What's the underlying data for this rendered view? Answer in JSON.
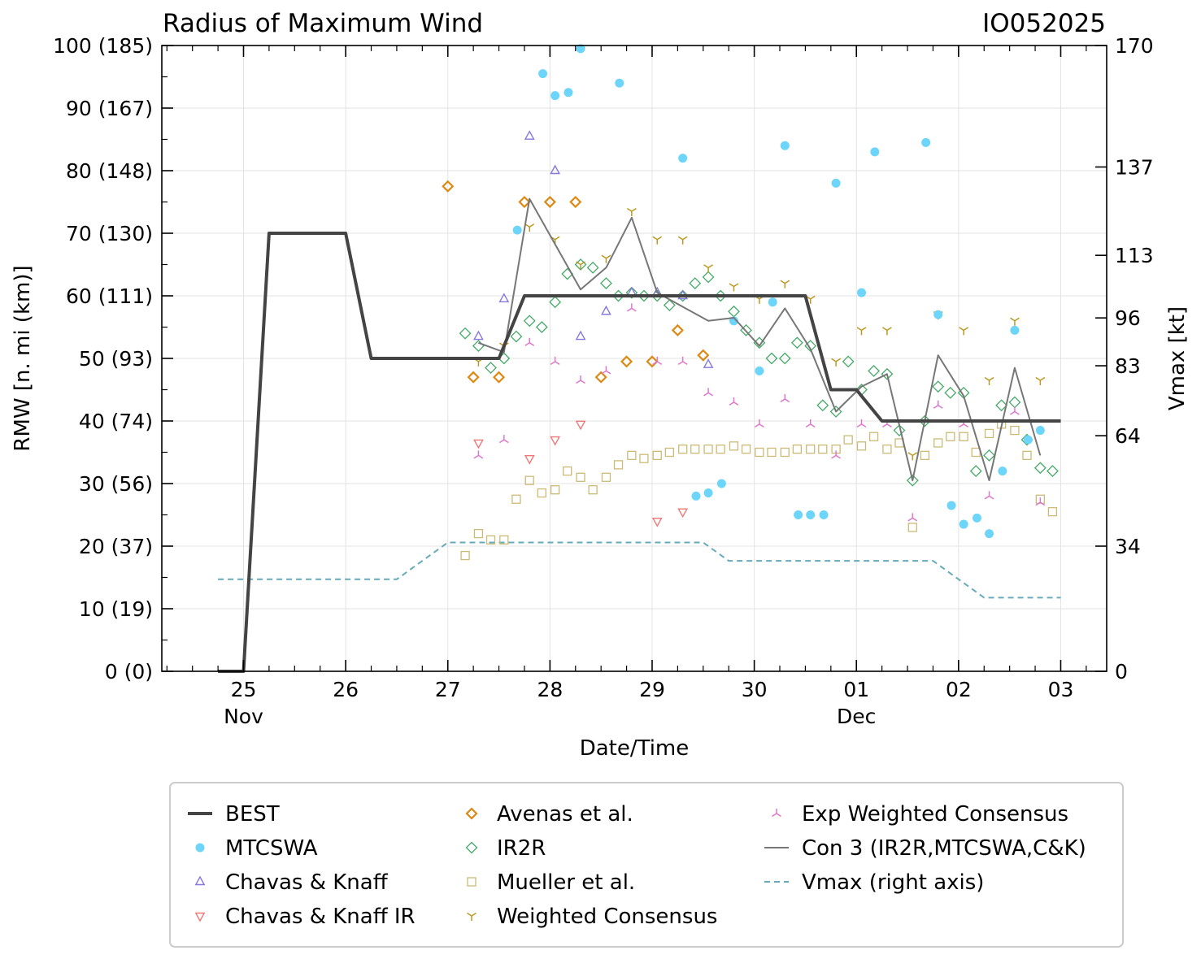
{
  "chart_data": {
    "type": "line+scatter",
    "title": "Radius of Maximum Wind",
    "storm_id": "IO052025",
    "xlabel": "Date/Time",
    "ylabel": "RMW [n. mi (km)]",
    "y2label": "Vmax [kt]",
    "ylim": [
      0,
      100
    ],
    "y2lim": [
      0,
      170
    ],
    "xlim_days": [
      -0.8,
      8.45
    ],
    "x_units": "days since 25 Nov 00Z",
    "y_ticks": [
      {
        "v": 0,
        "label": "0 (0)"
      },
      {
        "v": 10,
        "label": "10 (19)"
      },
      {
        "v": 20,
        "label": "20 (37)"
      },
      {
        "v": 30,
        "label": "30 (56)"
      },
      {
        "v": 40,
        "label": "40 (74)"
      },
      {
        "v": 50,
        "label": "50 (93)"
      },
      {
        "v": 60,
        "label": "60 (111)"
      },
      {
        "v": 70,
        "label": "70 (130)"
      },
      {
        "v": 80,
        "label": "80 (148)"
      },
      {
        "v": 90,
        "label": "90 (167)"
      },
      {
        "v": 100,
        "label": "100 (185)"
      }
    ],
    "y2_ticks": [
      {
        "v": 0,
        "label": "0"
      },
      {
        "v": 34,
        "label": "34"
      },
      {
        "v": 64,
        "label": "64"
      },
      {
        "v": 83,
        "label": "83"
      },
      {
        "v": 96,
        "label": "96"
      },
      {
        "v": 113,
        "label": "113"
      },
      {
        "v": 137,
        "label": "137"
      },
      {
        "v": 170,
        "label": "170"
      }
    ],
    "x_ticks": [
      {
        "v": 0,
        "label": "25",
        "sub": "Nov"
      },
      {
        "v": 1,
        "label": "26",
        "sub": ""
      },
      {
        "v": 2,
        "label": "27",
        "sub": ""
      },
      {
        "v": 3,
        "label": "28",
        "sub": ""
      },
      {
        "v": 4,
        "label": "29",
        "sub": ""
      },
      {
        "v": 5,
        "label": "30",
        "sub": ""
      },
      {
        "v": 6,
        "label": "01",
        "sub": "Dec"
      },
      {
        "v": 7,
        "label": "02",
        "sub": ""
      },
      {
        "v": 8,
        "label": "03",
        "sub": ""
      }
    ],
    "series": [
      {
        "key": "best",
        "name": "BEST",
        "kind": "line",
        "color": "#444444",
        "x": [
          -0.25,
          0,
          0.25,
          1,
          1.25,
          2.5,
          2.75,
          5.5,
          5.75,
          6,
          6.25,
          8
        ],
        "y": [
          0,
          0,
          70,
          70,
          50,
          50,
          60,
          60,
          45,
          45,
          40,
          40
        ]
      },
      {
        "key": "mtcswa",
        "name": "MTCSWA",
        "kind": "circle",
        "color": "#6dd5fa",
        "x": [
          2.68,
          2.93,
          3.05,
          3.18,
          3.3,
          3.68,
          4.3,
          4.43,
          4.55,
          4.68,
          4.8,
          5.05,
          5.18,
          5.3,
          5.43,
          5.55,
          5.68,
          5.8,
          6.05,
          6.18,
          6.68,
          6.8,
          6.93,
          7.05,
          7.18,
          7.3,
          7.43,
          7.55,
          7.68,
          7.8
        ],
        "y": [
          70.5,
          95.5,
          92,
          92.5,
          99.5,
          94,
          82,
          28,
          28.5,
          30,
          56,
          48,
          59,
          84,
          25,
          25,
          25,
          78,
          60.5,
          83,
          84.5,
          57,
          26.5,
          23.5,
          24.5,
          22,
          32,
          54.5,
          37,
          38.5
        ]
      },
      {
        "key": "ck",
        "name": "Chavas & Knaff",
        "kind": "tri-up",
        "color": "#8877dd",
        "x": [
          2.3,
          2.55,
          2.8,
          3.05,
          3.3,
          3.55,
          3.8,
          4.05,
          4.3,
          4.55
        ],
        "y": [
          53.5,
          59.5,
          85.5,
          80,
          53.5,
          57.5,
          60.5,
          60.5,
          60,
          49
        ]
      },
      {
        "key": "ckir",
        "name": "Chavas & Knaff IR",
        "kind": "tri-down",
        "color": "#ee7777",
        "x": [
          2.3,
          2.8,
          3.05,
          3.3,
          4.05,
          4.3
        ],
        "y": [
          36.5,
          34,
          37,
          39.5,
          24,
          25.5
        ]
      },
      {
        "key": "avenas",
        "name": "Avenas et al.",
        "kind": "diamond",
        "color": "#dd8811",
        "x": [
          2.0,
          2.25,
          2.5,
          2.75,
          3.0,
          3.25,
          3.5,
          3.75,
          4.0,
          4.25,
          4.5
        ],
        "y": [
          77.5,
          47,
          47,
          75,
          75,
          75,
          47,
          49.5,
          49.5,
          54.5,
          50.5
        ]
      },
      {
        "key": "ir2r",
        "name": "IR2R",
        "kind": "diamond-open",
        "color": "#44aa66",
        "x": [
          2.17,
          2.3,
          2.42,
          2.55,
          2.67,
          2.8,
          2.92,
          3.05,
          3.17,
          3.3,
          3.42,
          3.55,
          3.67,
          3.8,
          3.92,
          4.05,
          4.17,
          4.3,
          4.42,
          4.55,
          4.67,
          4.8,
          4.92,
          5.05,
          5.17,
          5.3,
          5.42,
          5.55,
          5.67,
          5.8,
          5.92,
          6.05,
          6.17,
          6.3,
          6.42,
          6.55,
          6.67,
          6.8,
          6.92,
          7.05,
          7.17,
          7.3,
          7.42,
          7.55,
          7.67,
          7.8,
          7.92
        ],
        "y": [
          54,
          52,
          48.5,
          50,
          53.5,
          56,
          55,
          59,
          63.5,
          65,
          64.5,
          62,
          60,
          60.5,
          60,
          60,
          58.5,
          60,
          62,
          63,
          60,
          57.5,
          54.5,
          52.5,
          50,
          50,
          52.5,
          52,
          42.5,
          41.5,
          49.5,
          45,
          48,
          47.5,
          38.5,
          30.5,
          40,
          45.5,
          44.5,
          44.5,
          32,
          34.5,
          42.5,
          43,
          37,
          32.5,
          32
        ]
      },
      {
        "key": "mueller",
        "name": "Mueller et al.",
        "kind": "square",
        "color": "#ccbb77",
        "x": [
          2.17,
          2.3,
          2.42,
          2.55,
          2.67,
          2.8,
          2.92,
          3.05,
          3.17,
          3.3,
          3.42,
          3.55,
          3.67,
          3.8,
          3.92,
          4.05,
          4.17,
          4.3,
          4.42,
          4.55,
          4.67,
          4.8,
          4.92,
          5.05,
          5.17,
          5.3,
          5.42,
          5.55,
          5.67,
          5.8,
          5.92,
          6.05,
          6.17,
          6.3,
          6.42,
          6.55,
          6.67,
          6.8,
          6.92,
          7.05,
          7.17,
          7.3,
          7.42,
          7.55,
          7.67,
          7.8,
          7.92
        ],
        "y": [
          18.5,
          22,
          21,
          21,
          27.5,
          30.5,
          28.5,
          29,
          32,
          31,
          29,
          31,
          33,
          34.5,
          34,
          34.5,
          35,
          35.5,
          35.5,
          35.5,
          35.5,
          36,
          35.5,
          35,
          35,
          35,
          35.5,
          35.5,
          35.5,
          35.5,
          37,
          36,
          37.5,
          35.5,
          36.5,
          23,
          34.5,
          36.5,
          37.5,
          37.5,
          35,
          38,
          39.5,
          38.5,
          34.5,
          27.5,
          25.5
        ]
      },
      {
        "key": "wcon",
        "name": "Weighted Consensus",
        "kind": "y-down",
        "color": "#bb9922",
        "x": [
          2.3,
          2.55,
          2.8,
          3.05,
          3.3,
          3.55,
          3.8,
          4.05,
          4.3,
          4.55,
          4.8,
          5.05,
          5.3,
          5.55,
          5.8,
          6.05,
          6.3,
          6.55,
          6.8,
          7.05,
          7.3,
          7.55,
          7.8
        ],
        "y": [
          49.5,
          52,
          71,
          69,
          65,
          66,
          73.5,
          69,
          69,
          64.5,
          61.5,
          59.5,
          62,
          59.5,
          49.5,
          54.5,
          54.5,
          34.5,
          57,
          54.5,
          46.5,
          56,
          46.5
        ]
      },
      {
        "key": "ewcon",
        "name": "Exp Weighted Consensus",
        "kind": "y-up",
        "color": "#dd77cc",
        "x": [
          2.3,
          2.55,
          2.8,
          3.05,
          3.3,
          3.55,
          3.8,
          4.05,
          4.3,
          4.55,
          4.8,
          5.05,
          5.3,
          5.55,
          5.8,
          6.05,
          6.3,
          6.55,
          6.8,
          7.05,
          7.3,
          7.55,
          7.8
        ],
        "y": [
          34.5,
          37,
          52.5,
          49.5,
          46.5,
          48,
          58,
          49.5,
          49.5,
          44.5,
          43,
          39.5,
          43.5,
          39.5,
          34.5,
          39.5,
          39.5,
          24.5,
          42.5,
          39.5,
          28,
          41.5,
          27
        ]
      },
      {
        "key": "con3",
        "name": "Con 3 (IR2R,MTCSWA,C&K)",
        "kind": "thin-line",
        "color": "#777777",
        "x": [
          2.3,
          2.55,
          2.8,
          3.3,
          3.55,
          3.8,
          4.05,
          4.55,
          4.8,
          5.05,
          5.3,
          5.55,
          5.8,
          6.05,
          6.3,
          6.55,
          6.8,
          7.05,
          7.3,
          7.55,
          7.8
        ],
        "y": [
          52.5,
          51,
          75.5,
          61,
          64.5,
          72.5,
          60.5,
          56,
          56.5,
          52,
          58,
          51.5,
          41.5,
          45.5,
          47.5,
          30.5,
          50.5,
          44,
          30.5,
          48.5,
          34.5
        ]
      },
      {
        "key": "vmax",
        "name": "Vmax (right axis)",
        "kind": "dash-line",
        "color": "#66aabb",
        "axis": "right",
        "x": [
          -0.25,
          1.5,
          2.0,
          4.5,
          4.75,
          6.75,
          7.25,
          8.0
        ],
        "y": [
          25,
          25,
          35,
          35,
          30,
          30,
          20,
          20
        ]
      }
    ],
    "legend": [
      {
        "key": "best",
        "label": "BEST"
      },
      {
        "key": "mtcswa",
        "label": "MTCSWA"
      },
      {
        "key": "ck",
        "label": "Chavas & Knaff"
      },
      {
        "key": "ckir",
        "label": "Chavas & Knaff IR"
      },
      {
        "key": "avenas",
        "label": "Avenas et al."
      },
      {
        "key": "ir2r",
        "label": "IR2R"
      },
      {
        "key": "mueller",
        "label": "Mueller et al."
      },
      {
        "key": "wcon",
        "label": "Weighted Consensus"
      },
      {
        "key": "ewcon",
        "label": "Exp Weighted Consensus"
      },
      {
        "key": "con3",
        "label": "Con 3 (IR2R,MTCSWA,C&K)"
      },
      {
        "key": "vmax",
        "label": "Vmax (right axis)"
      }
    ],
    "legend_position": "bottom"
  }
}
